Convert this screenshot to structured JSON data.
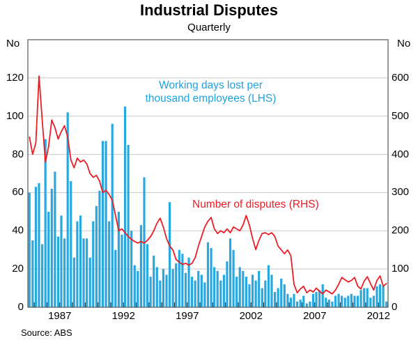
{
  "header": {
    "title": "Industrial Disputes",
    "subtitle": "Quarterly"
  },
  "axes": {
    "left_unit": "No",
    "right_unit": "No",
    "left_ticks": [
      0,
      20,
      40,
      60,
      80,
      100,
      120
    ],
    "right_ticks": [
      0,
      100,
      200,
      300,
      400,
      500,
      600
    ],
    "x_ticks": [
      1987,
      1992,
      1997,
      2002,
      2007,
      2012
    ]
  },
  "legend": {
    "bars_label_line1": "Working days lost per",
    "bars_label_line2": "thousand employees (LHS)",
    "line_label": "Number of disputes (RHS)"
  },
  "source": "Source: ABS",
  "colors": {
    "bars": "#29a8e0",
    "line": "#ec1c24",
    "grid": "#c8c8c8",
    "frame": "#58585a"
  },
  "chart_data": {
    "type": "bar",
    "subtype": "bar+line combo, dual axis",
    "title": "Industrial Disputes",
    "subtitle": "Quarterly",
    "frequency": "quarterly",
    "x_start": {
      "year": 1984,
      "quarter": 3
    },
    "x_end": {
      "year": 2012,
      "quarter": 3
    },
    "left_axis_range": [
      0,
      140
    ],
    "right_axis_range": [
      0,
      700
    ],
    "grid": true,
    "x_tick_years": [
      1987,
      1992,
      1997,
      2002,
      2007,
      2012
    ],
    "series": [
      {
        "name": "Working days lost per thousand employees (LHS)",
        "type": "bar",
        "axis": "left",
        "color": "#29a8e0",
        "values": [
          60,
          35,
          63,
          65,
          33,
          88,
          50,
          62,
          71,
          37,
          48,
          36,
          102,
          66,
          26,
          45,
          48,
          36,
          36,
          26,
          45,
          53,
          61,
          87,
          87,
          45,
          96,
          30,
          50,
          38,
          105,
          85,
          40,
          22,
          19,
          43,
          68,
          33,
          16,
          27,
          21,
          14,
          20,
          17,
          55,
          20,
          23,
          30,
          28,
          18,
          26,
          16,
          14,
          19,
          17,
          13,
          34,
          31,
          21,
          19,
          14,
          17,
          24,
          36,
          30,
          16,
          21,
          19,
          16,
          12,
          17,
          14,
          19,
          10,
          14,
          22,
          17,
          8,
          10,
          15,
          12,
          7,
          5,
          7,
          3,
          4,
          6,
          2,
          3,
          7,
          8,
          9,
          12,
          5,
          4,
          3,
          6,
          7,
          6,
          5,
          6,
          7,
          6,
          6,
          9,
          10,
          10,
          5,
          6,
          11,
          12,
          11,
          3
        ]
      },
      {
        "name": "Number of disputes (RHS)",
        "type": "line",
        "axis": "right",
        "color": "#ec1c24",
        "values": [
          445,
          400,
          430,
          605,
          490,
          380,
          420,
          490,
          470,
          440,
          460,
          475,
          445,
          385,
          365,
          390,
          380,
          385,
          375,
          350,
          340,
          345,
          330,
          300,
          306,
          295,
          280,
          240,
          200,
          205,
          195,
          185,
          178,
          172,
          168,
          172,
          168,
          175,
          185,
          200,
          220,
          233,
          210,
          180,
          160,
          150,
          125,
          118,
          112,
          115,
          110,
          115,
          130,
          160,
          185,
          210,
          225,
          235,
          205,
          193,
          200,
          195,
          205,
          195,
          210,
          205,
          200,
          215,
          240,
          215,
          180,
          151,
          175,
          193,
          195,
          190,
          195,
          185,
          160,
          150,
          140,
          150,
          135,
          60,
          38,
          48,
          55,
          38,
          45,
          40,
          50,
          42,
          35,
          45,
          40,
          35,
          45,
          60,
          78,
          72,
          66,
          70,
          78,
          55,
          48,
          68,
          80,
          62,
          45,
          70,
          82,
          55,
          62
        ]
      }
    ]
  }
}
